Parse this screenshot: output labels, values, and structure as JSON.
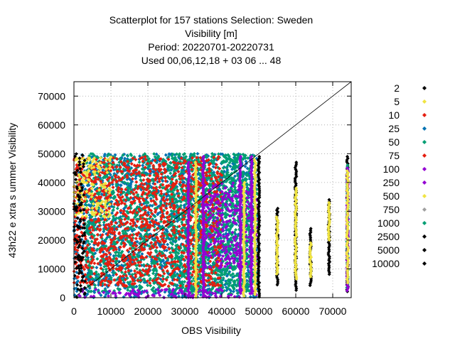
{
  "chart_data": {
    "type": "scatter",
    "title_lines": [
      "Scatterplot for  157 stations Selection: Sweden",
      "Visibility [m]",
      "Period: 20220701-20220731",
      "Used  00,06,12,18  + 03 06 ... 48"
    ],
    "xlabel": "OBS Visibility",
    "ylabel": "43h22 e xtra s ummer Visibility",
    "xlim": [
      0,
      75000
    ],
    "ylim": [
      0,
      75000
    ],
    "x_ticks": [
      0,
      10000,
      20000,
      30000,
      40000,
      50000,
      60000,
      70000
    ],
    "y_ticks": [
      0,
      10000,
      20000,
      30000,
      40000,
      50000,
      60000,
      70000
    ],
    "x_tick_labels": [
      "0",
      "10000",
      "20000",
      "30000",
      "40000",
      "50000",
      "60000",
      "70000"
    ],
    "y_tick_labels": [
      "0",
      "10000",
      "20000",
      "30000",
      "40000",
      "50000",
      "60000",
      "70000"
    ],
    "grid": true,
    "diagonal_line": true,
    "legend_position": "right",
    "series": [
      {
        "name": "2",
        "color": "#000000"
      },
      {
        "name": "5",
        "color": "#f0e442"
      },
      {
        "name": "10",
        "color": "#e51e10"
      },
      {
        "name": "25",
        "color": "#0072b2"
      },
      {
        "name": "50",
        "color": "#009e73"
      },
      {
        "name": "75",
        "color": "#e51e10"
      },
      {
        "name": "100",
        "color": "#9400d3"
      },
      {
        "name": "250",
        "color": "#9400d3"
      },
      {
        "name": "500",
        "color": "#f0e442"
      },
      {
        "name": "750",
        "color": "#a0a0a0"
      },
      {
        "name": "1000",
        "color": "#009e73"
      },
      {
        "name": "2500",
        "color": "#000000"
      },
      {
        "name": "5000",
        "color": "#000000"
      },
      {
        "name": "10000",
        "color": "#000000"
      }
    ],
    "regions": [
      {
        "series": "25",
        "x": [
          0,
          50000
        ],
        "y": [
          0,
          50000
        ]
      },
      {
        "series": "50",
        "x": [
          3000,
          50000
        ],
        "y": [
          2000,
          50000
        ]
      },
      {
        "series": "1000",
        "x": [
          26000,
          48000
        ],
        "y": [
          1000,
          50000
        ]
      },
      {
        "series": "10",
        "x": [
          0,
          40000
        ],
        "y": [
          4000,
          49000
        ]
      },
      {
        "series": "5",
        "x": [
          0,
          10000
        ],
        "y": [
          28000,
          49000
        ]
      },
      {
        "series": "100",
        "x": [
          35000,
          50000
        ],
        "y": [
          10000,
          40000
        ]
      },
      {
        "series": "250",
        "x": [
          0,
          50000
        ],
        "y": [
          0,
          3000
        ]
      },
      {
        "series": "2",
        "x": [
          0,
          3000
        ],
        "y": [
          0,
          50000
        ]
      }
    ],
    "columns": [
      {
        "series": "5000",
        "x": 55000,
        "y": [
          4000,
          31000
        ]
      },
      {
        "series": "500",
        "x": 55000,
        "y": [
          8000,
          28000
        ]
      },
      {
        "series": "2500",
        "x": 60000,
        "y": [
          2000,
          47000
        ]
      },
      {
        "series": "500",
        "x": 60000,
        "y": [
          6000,
          38000
        ]
      },
      {
        "series": "2500",
        "x": 64000,
        "y": [
          4000,
          24000
        ]
      },
      {
        "series": "500",
        "x": 64000,
        "y": [
          7000,
          19000
        ]
      },
      {
        "series": "2500",
        "x": 69000,
        "y": [
          8000,
          34000
        ]
      },
      {
        "series": "500",
        "x": 69000,
        "y": [
          20000,
          33000
        ]
      },
      {
        "series": "2500",
        "x": 74000,
        "y": [
          2000,
          49000
        ]
      },
      {
        "series": "1000",
        "x": 74000,
        "y": [
          3000,
          46000
        ]
      },
      {
        "series": "100",
        "x": 74000,
        "y": [
          2000,
          45000
        ]
      },
      {
        "series": "500",
        "x": 74000,
        "y": [
          5000,
          44000
        ]
      },
      {
        "series": "100",
        "x": 45000,
        "y": [
          1000,
          49000
        ]
      },
      {
        "series": "500",
        "x": 46000,
        "y": [
          0,
          40000
        ]
      },
      {
        "series": "500",
        "x": 49000,
        "y": [
          1000,
          48000
        ]
      },
      {
        "series": "100",
        "x": 48000,
        "y": [
          1000,
          49000
        ]
      },
      {
        "series": "2",
        "x": 50000,
        "y": [
          0,
          49000
        ]
      },
      {
        "series": "500",
        "x": 33000,
        "y": [
          0,
          47000
        ]
      },
      {
        "series": "100",
        "x": 35000,
        "y": [
          0,
          49000
        ]
      },
      {
        "series": "100",
        "x": 31000,
        "y": [
          0,
          47000
        ]
      }
    ]
  }
}
